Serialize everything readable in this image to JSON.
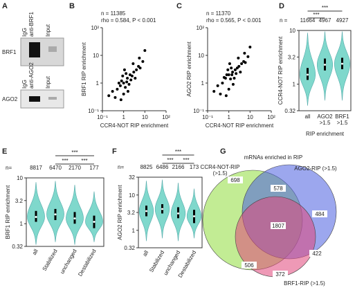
{
  "panel_a": {
    "panel": "A",
    "blots": [
      {
        "protein": "BRF1",
        "lanes": [
          "IgG",
          "anti-BRF1",
          "Input"
        ]
      },
      {
        "protein": "AGO2",
        "lanes": [
          "IgG",
          "anti-AGO2",
          "Input"
        ]
      }
    ]
  },
  "chart_data": [
    {
      "type": "scatter",
      "panel": "B",
      "annotations": [
        "n = 11385",
        "rho = 0.584, P < 0.001"
      ],
      "xlabel": "CCR4-NOT RIP enrichment",
      "ylabel": "BRF1 RIP enrichment",
      "log_scale": true,
      "color": "#000000",
      "xlim": [
        0.1,
        100
      ],
      "ylim": [
        0.1,
        100
      ],
      "xticks": [
        {
          "value": 0.1,
          "label": "10⁻¹"
        },
        1,
        10,
        {
          "value": 100,
          "label": "10²"
        }
      ],
      "yticks": [
        {
          "value": 0.1,
          "label": "10⁻¹"
        },
        1,
        10,
        {
          "value": 100,
          "label": "10²"
        }
      ],
      "x": [
        0.3,
        0.5,
        0.7,
        0.8,
        1,
        1.2,
        1.5,
        2,
        2.5,
        3,
        4,
        5,
        6,
        8,
        1,
        0.9,
        1.3,
        1.8,
        2.2,
        0.6,
        0.4,
        3.5,
        1.1,
        1.6,
        0.75,
        2.8,
        5.5,
        10,
        0.2,
        1.4
      ],
      "y": [
        0.5,
        0.6,
        0.8,
        1.2,
        1,
        0.7,
        1.5,
        2,
        1.8,
        2.5,
        3,
        4,
        3.5,
        6,
        0.4,
        1.8,
        2.2,
        0.9,
        1.3,
        1,
        0.3,
        1.5,
        3,
        0.5,
        0.25,
        5,
        8,
        15,
        0.35,
        1.1
      ]
    },
    {
      "type": "scatter",
      "panel": "C",
      "annotations": [
        "n = 11370",
        "rho = 0.565, P < 0.001"
      ],
      "xlabel": "CCR4-NOT RIP enrichment",
      "ylabel": "AGO2 RIP enrichment",
      "log_scale": true,
      "color": "#000000",
      "xlim": [
        0.1,
        100
      ],
      "ylim": [
        0.1,
        100
      ],
      "xticks": [
        {
          "value": 0.1,
          "label": "10⁻¹"
        },
        1,
        10,
        {
          "value": 100,
          "label": "10²"
        }
      ],
      "yticks": [
        {
          "value": 0.1,
          "label": "10⁻¹"
        },
        1,
        10,
        {
          "value": 100,
          "label": "10²"
        }
      ],
      "x": [
        0.3,
        0.5,
        0.7,
        0.8,
        1,
        1.2,
        1.5,
        2,
        2.5,
        3,
        4,
        5,
        6,
        8,
        1,
        0.9,
        1.3,
        1.8,
        2.2,
        0.6,
        0.4,
        3.5,
        1.1,
        1.6,
        0.75,
        2.8,
        5.5,
        10,
        0.2,
        1.4
      ],
      "y": [
        0.8,
        1,
        1.5,
        2,
        2,
        1.4,
        2.5,
        3,
        3.5,
        4,
        5,
        6,
        5.5,
        9,
        0.6,
        3,
        3.5,
        1.5,
        2.2,
        1.6,
        0.4,
        2.5,
        5,
        0.9,
        0.35,
        8,
        12,
        20,
        0.5,
        2
      ]
    },
    {
      "type": "violin",
      "panel": "D",
      "n_label": "n =",
      "n": [
        11664,
        4967,
        4927
      ],
      "significance": [
        "***",
        "***"
      ],
      "categories": [
        "all",
        "AGO2 >1.5",
        "BRF1 >1.5"
      ],
      "xlabel": "RIP enrichment",
      "ylabel": "CCR4-NOT RIP enrichment",
      "log_scale": true,
      "color": "#7fd8cc",
      "ylim": [
        0.32,
        10
      ],
      "yticks": [
        0.32,
        1,
        3.2,
        10
      ],
      "median": [
        1.5,
        2.3,
        2.4
      ],
      "q1": [
        1.2,
        1.8,
        1.9
      ],
      "q3": [
        2,
        3,
        3.1
      ],
      "min": [
        0.4,
        0.5,
        0.5
      ],
      "max": [
        9,
        9.5,
        9.5
      ]
    },
    {
      "type": "violin",
      "panel": "E",
      "n_label": "n=",
      "n": [
        8817,
        6470,
        2170,
        177
      ],
      "significance": [
        "***",
        "***",
        "***"
      ],
      "categories": [
        "all",
        "Stabilized",
        "unchanged",
        "Destabilized"
      ],
      "ylabel": "BRF1 RIP enrichment",
      "log_scale": true,
      "color": "#7fd8cc",
      "ylim": [
        0.32,
        10
      ],
      "yticks": [
        0.32,
        1,
        3.2,
        10
      ],
      "median": [
        1.4,
        1.6,
        1.3,
        1.1
      ],
      "q1": [
        1.1,
        1.2,
        1,
        0.8
      ],
      "q3": [
        1.9,
        2.1,
        1.8,
        1.5
      ],
      "min": [
        0.35,
        0.4,
        0.35,
        0.4
      ],
      "max": [
        8,
        8.5,
        7,
        5
      ]
    },
    {
      "type": "violin",
      "panel": "F",
      "n_label": "n=",
      "n": [
        8825,
        6486,
        2166,
        173
      ],
      "significance": [
        "***",
        "***",
        "***"
      ],
      "categories": [
        "all",
        "Stabilized",
        "unchanged",
        "Destabilized"
      ],
      "ylabel": "AGO2 RIP enrichment",
      "log_scale": true,
      "color": "#7fd8cc",
      "ylim": [
        0.32,
        32
      ],
      "yticks": [
        0.32,
        1,
        3.2,
        10,
        32
      ],
      "median": [
        3.5,
        4,
        3,
        2.5
      ],
      "q1": [
        2.5,
        3,
        2.2,
        1.6
      ],
      "q3": [
        5,
        5.5,
        4.5,
        3.8
      ],
      "min": [
        0.5,
        0.6,
        0.5,
        0.6
      ],
      "max": [
        25,
        27,
        22,
        15
      ]
    }
  ],
  "venn": {
    "panel": "G",
    "title": "mRNAs enriched in RIP",
    "sets": [
      {
        "name": "CCR4-NOT-RIP (>1.5)",
        "color": "#8fdc3c"
      },
      {
        "name": "AGO2-RIP (>1.5)",
        "color": "#4a5ee0"
      },
      {
        "name": "BRF1-RIP (>1.5)",
        "color": "#e0457a"
      }
    ],
    "regions": [
      698,
      578,
      484,
      1807,
      422,
      506,
      372
    ]
  }
}
